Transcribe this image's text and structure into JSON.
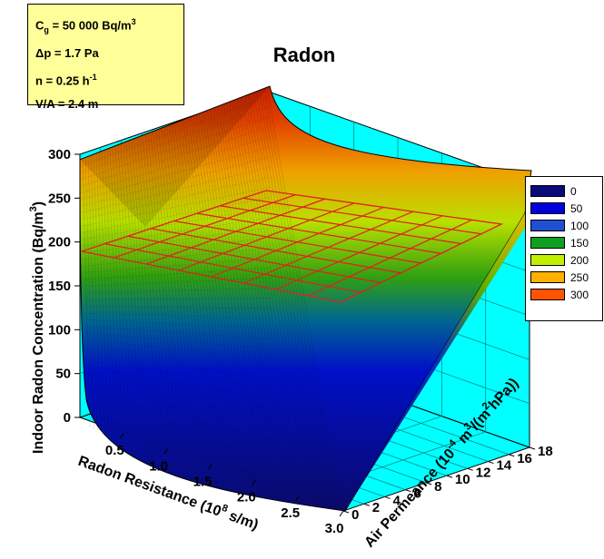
{
  "chart_data": {
    "type": "surface3d",
    "title": "Radon",
    "parameters": {
      "cg": {
        "name": "C",
        "sub": "g",
        "rest": " = 50 000 Bq/m",
        "sup": "3"
      },
      "dp": {
        "name": "Δp = 1.7 Pa"
      },
      "n": {
        "name": "n = 0.25 h",
        "sup": "-1"
      },
      "va": {
        "name": "V/A = 2.4 m"
      }
    },
    "axes": {
      "x": {
        "label_pre": "Radon Resistance (10",
        "label_sup": "8",
        "label_post": " s/m)",
        "ticks": [
          "0.5",
          "1.0",
          "1.5",
          "2.0",
          "2.5",
          "3.0"
        ],
        "range": [
          0,
          3.0
        ]
      },
      "y": {
        "label_pre": "Air Permeance (10",
        "label_sup1": "-4",
        "label_mid": " m",
        "label_sup2": "3",
        "label_mid2": "/(m",
        "label_sup3": "2",
        "label_post": "hPa))",
        "ticks": [
          "0",
          "2",
          "4",
          "6",
          "8",
          "10",
          "12",
          "14",
          "16",
          "18"
        ],
        "range": [
          0,
          18
        ]
      },
      "z": {
        "label_pre": "Indoor Radon Concentration (Bq/m",
        "label_sup": "3",
        "label_post": ")",
        "ticks": [
          "0",
          "50",
          "100",
          "150",
          "200",
          "250",
          "300"
        ],
        "range": [
          0,
          300
        ]
      }
    },
    "reference_plane": {
      "z": 200,
      "color": "#e02020"
    },
    "legend": {
      "placement": "right",
      "entries": [
        {
          "label": "0",
          "color": "#0a0a7a"
        },
        {
          "label": "50",
          "color": "#0000dd"
        },
        {
          "label": "100",
          "color": "#2050d0"
        },
        {
          "label": "150",
          "color": "#10a020"
        },
        {
          "label": "200",
          "color": "#c0f000"
        },
        {
          "label": "250",
          "color": "#ffb000"
        },
        {
          "label": "300",
          "color": "#ff5500"
        }
      ]
    },
    "colors": {
      "wall": "#00ffff",
      "grid": "#008c8c"
    }
  }
}
